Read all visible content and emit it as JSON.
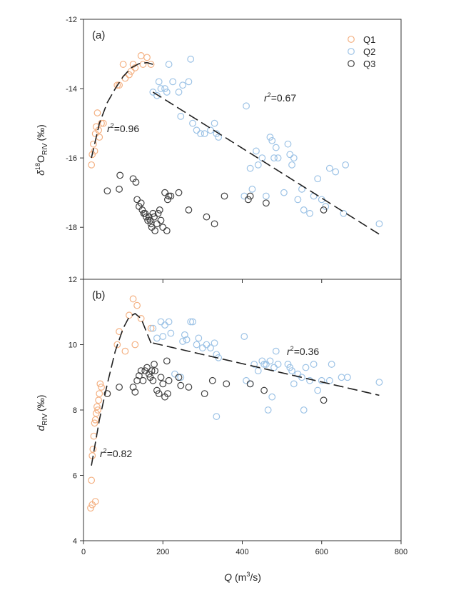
{
  "colors": {
    "Q1": "#f4b183",
    "Q2": "#9dc3e6",
    "Q3": "#404040",
    "fit": "#222222"
  },
  "chart_data": [
    {
      "type": "scatter",
      "panel_label": "(a)",
      "ylabel": "δ18ORIV (‰)",
      "ylabel_parts": {
        "symbol": "δ",
        "sup": "18",
        "main": "O",
        "sub": "RIV",
        "unit": "(‰)"
      },
      "xlim": [
        0,
        800
      ],
      "ylim": [
        -19.5,
        -12
      ],
      "yticks": [
        -18,
        -16,
        -14,
        -12
      ],
      "legend": [
        "Q1",
        "Q2",
        "Q3"
      ],
      "legend_position": "top-right",
      "series": [
        {
          "name": "Q1",
          "points": [
            [
              20,
              -16.2
            ],
            [
              22,
              -15.9
            ],
            [
              25,
              -15.6
            ],
            [
              28,
              -15.8
            ],
            [
              30,
              -15.3
            ],
            [
              32,
              -15.1
            ],
            [
              35,
              -14.7
            ],
            [
              38,
              -15.2
            ],
            [
              40,
              -15.4
            ],
            [
              45,
              -15.0
            ],
            [
              50,
              -15.0
            ],
            [
              85,
              -13.9
            ],
            [
              90,
              -13.9
            ],
            [
              100,
              -13.3
            ],
            [
              105,
              -13.7
            ],
            [
              115,
              -13.6
            ],
            [
              120,
              -13.5
            ],
            [
              125,
              -13.3
            ],
            [
              130,
              -13.4
            ],
            [
              145,
              -13.05
            ],
            [
              150,
              -13.3
            ],
            [
              160,
              -13.1
            ],
            [
              170,
              -13.3
            ]
          ]
        },
        {
          "name": "Q2",
          "points": [
            [
              175,
              -14.1
            ],
            [
              185,
              -14.2
            ],
            [
              190,
              -13.8
            ],
            [
              195,
              -14.0
            ],
            [
              205,
              -14.0
            ],
            [
              210,
              -14.1
            ],
            [
              215,
              -13.3
            ],
            [
              225,
              -13.8
            ],
            [
              240,
              -14.1
            ],
            [
              245,
              -14.8
            ],
            [
              250,
              -13.9
            ],
            [
              265,
              -13.8
            ],
            [
              270,
              -13.15
            ],
            [
              275,
              -15.0
            ],
            [
              285,
              -15.2
            ],
            [
              295,
              -15.3
            ],
            [
              305,
              -15.3
            ],
            [
              320,
              -15.2
            ],
            [
              330,
              -15.0
            ],
            [
              335,
              -15.3
            ],
            [
              340,
              -15.4
            ],
            [
              405,
              -17.1
            ],
            [
              410,
              -14.5
            ],
            [
              420,
              -16.3
            ],
            [
              425,
              -16.9
            ],
            [
              435,
              -15.8
            ],
            [
              440,
              -16.2
            ],
            [
              450,
              -16.0
            ],
            [
              460,
              -17.1
            ],
            [
              470,
              -15.4
            ],
            [
              475,
              -15.5
            ],
            [
              480,
              -16.0
            ],
            [
              485,
              -15.7
            ],
            [
              490,
              -16.0
            ],
            [
              505,
              -17.0
            ],
            [
              515,
              -15.6
            ],
            [
              520,
              -15.9
            ],
            [
              525,
              -16.2
            ],
            [
              530,
              -16.0
            ],
            [
              540,
              -17.2
            ],
            [
              550,
              -16.9
            ],
            [
              555,
              -17.5
            ],
            [
              570,
              -17.6
            ],
            [
              580,
              -17.1
            ],
            [
              590,
              -16.6
            ],
            [
              600,
              -17.2
            ],
            [
              610,
              -17.4
            ],
            [
              620,
              -16.3
            ],
            [
              635,
              -16.4
            ],
            [
              660,
              -16.2
            ],
            [
              655,
              -17.6
            ],
            [
              745,
              -17.9
            ]
          ]
        },
        {
          "name": "Q3",
          "points": [
            [
              60,
              -16.95
            ],
            [
              90,
              -16.9
            ],
            [
              92,
              -16.5
            ],
            [
              125,
              -16.6
            ],
            [
              132,
              -16.7
            ],
            [
              135,
              -17.2
            ],
            [
              140,
              -17.4
            ],
            [
              145,
              -17.3
            ],
            [
              148,
              -17.5
            ],
            [
              152,
              -17.6
            ],
            [
              155,
              -17.6
            ],
            [
              158,
              -17.7
            ],
            [
              162,
              -17.8
            ],
            [
              165,
              -17.7
            ],
            [
              168,
              -17.8
            ],
            [
              170,
              -17.9
            ],
            [
              172,
              -18.0
            ],
            [
              175,
              -17.6
            ],
            [
              178,
              -17.7
            ],
            [
              180,
              -18.1
            ],
            [
              185,
              -17.9
            ],
            [
              188,
              -17.6
            ],
            [
              192,
              -17.5
            ],
            [
              195,
              -17.8
            ],
            [
              200,
              -18.0
            ],
            [
              205,
              -17.0
            ],
            [
              210,
              -18.1
            ],
            [
              212,
              -17.2
            ],
            [
              215,
              -17.1
            ],
            [
              220,
              -17.1
            ],
            [
              240,
              -17.0
            ],
            [
              265,
              -17.5
            ],
            [
              310,
              -17.7
            ],
            [
              330,
              -17.9
            ],
            [
              355,
              -17.1
            ],
            [
              415,
              -17.2
            ],
            [
              420,
              -17.1
            ],
            [
              460,
              -17.3
            ],
            [
              605,
              -17.5
            ]
          ]
        }
      ],
      "fits": [
        {
          "label": "r2=0.96",
          "r2": "0.96",
          "points": [
            [
              20,
              -16.0
            ],
            [
              40,
              -15.0
            ],
            [
              60,
              -14.4
            ],
            [
              80,
              -14.0
            ],
            [
              100,
              -13.65
            ],
            [
              120,
              -13.4
            ],
            [
              140,
              -13.28
            ],
            [
              160,
              -13.25
            ],
            [
              175,
              -13.3
            ]
          ]
        },
        {
          "label": "r2=0.67",
          "r2": "0.67",
          "points": [
            [
              175,
              -14.1
            ],
            [
              745,
              -18.2
            ]
          ]
        }
      ]
    },
    {
      "type": "scatter",
      "panel_label": "(b)",
      "ylabel": "dRIV (‰)",
      "ylabel_parts": {
        "main": "d",
        "sub": "RIV",
        "unit": "(‰)"
      },
      "xlabel": "Q (m3/s)",
      "xlabel_parts": {
        "main": "Q",
        "unit_pre": "(m",
        "unit_sup": "3",
        "unit_post": "/s)"
      },
      "xlim": [
        0,
        800
      ],
      "xticks": [
        0,
        200,
        400,
        600,
        800
      ],
      "ylim": [
        4,
        12
      ],
      "yticks": [
        4,
        6,
        8,
        10,
        12
      ],
      "series": [
        {
          "name": "Q1",
          "points": [
            [
              18,
              5.0
            ],
            [
              22,
              5.1
            ],
            [
              30,
              5.2
            ],
            [
              20,
              5.85
            ],
            [
              22,
              6.6
            ],
            [
              24,
              6.8
            ],
            [
              26,
              7.2
            ],
            [
              28,
              7.6
            ],
            [
              30,
              7.7
            ],
            [
              32,
              7.9
            ],
            [
              34,
              8.1
            ],
            [
              36,
              8.0
            ],
            [
              38,
              8.3
            ],
            [
              40,
              8.5
            ],
            [
              42,
              8.8
            ],
            [
              45,
              8.7
            ],
            [
              60,
              8.5
            ],
            [
              85,
              10.0
            ],
            [
              90,
              10.4
            ],
            [
              105,
              9.8
            ],
            [
              115,
              10.9
            ],
            [
              125,
              11.4
            ],
            [
              130,
              10.0
            ],
            [
              135,
              11.2
            ],
            [
              145,
              10.8
            ],
            [
              170,
              10.5
            ]
          ]
        },
        {
          "name": "Q2",
          "points": [
            [
              175,
              10.5
            ],
            [
              185,
              10.2
            ],
            [
              195,
              10.7
            ],
            [
              200,
              10.25
            ],
            [
              205,
              10.6
            ],
            [
              215,
              10.7
            ],
            [
              220,
              10.35
            ],
            [
              230,
              9.1
            ],
            [
              245,
              9.0
            ],
            [
              250,
              10.1
            ],
            [
              255,
              10.3
            ],
            [
              260,
              10.15
            ],
            [
              270,
              10.7
            ],
            [
              275,
              10.7
            ],
            [
              285,
              10.0
            ],
            [
              290,
              10.2
            ],
            [
              300,
              9.9
            ],
            [
              310,
              10.0
            ],
            [
              320,
              9.9
            ],
            [
              330,
              10.05
            ],
            [
              335,
              9.7
            ],
            [
              340,
              9.6
            ],
            [
              335,
              7.8
            ],
            [
              405,
              10.25
            ],
            [
              410,
              8.9
            ],
            [
              420,
              8.8
            ],
            [
              430,
              9.4
            ],
            [
              440,
              9.2
            ],
            [
              450,
              9.5
            ],
            [
              455,
              9.4
            ],
            [
              460,
              9.4
            ],
            [
              465,
              8.0
            ],
            [
              470,
              9.5
            ],
            [
              475,
              8.4
            ],
            [
              480,
              9.3
            ],
            [
              485,
              9.8
            ],
            [
              490,
              9.4
            ],
            [
              515,
              9.4
            ],
            [
              520,
              9.3
            ],
            [
              525,
              9.2
            ],
            [
              530,
              8.8
            ],
            [
              540,
              9.1
            ],
            [
              550,
              9.0
            ],
            [
              555,
              8.0
            ],
            [
              560,
              9.3
            ],
            [
              570,
              8.9
            ],
            [
              580,
              9.4
            ],
            [
              590,
              8.6
            ],
            [
              600,
              8.9
            ],
            [
              620,
              8.9
            ],
            [
              625,
              9.4
            ],
            [
              650,
              9.0
            ],
            [
              665,
              9.0
            ],
            [
              745,
              8.85
            ]
          ]
        },
        {
          "name": "Q3",
          "points": [
            [
              60,
              8.5
            ],
            [
              90,
              8.7
            ],
            [
              125,
              8.7
            ],
            [
              130,
              8.55
            ],
            [
              135,
              8.9
            ],
            [
              140,
              9.05
            ],
            [
              145,
              9.2
            ],
            [
              150,
              8.9
            ],
            [
              155,
              9.2
            ],
            [
              160,
              9.3
            ],
            [
              165,
              9.1
            ],
            [
              168,
              9.0
            ],
            [
              172,
              9.2
            ],
            [
              175,
              8.9
            ],
            [
              178,
              9.4
            ],
            [
              180,
              9.2
            ],
            [
              185,
              8.6
            ],
            [
              190,
              8.5
            ],
            [
              195,
              9.0
            ],
            [
              200,
              8.8
            ],
            [
              205,
              8.4
            ],
            [
              210,
              9.5
            ],
            [
              212,
              8.5
            ],
            [
              215,
              8.9
            ],
            [
              240,
              9.0
            ],
            [
              245,
              8.75
            ],
            [
              265,
              8.7
            ],
            [
              305,
              8.5
            ],
            [
              325,
              8.9
            ],
            [
              360,
              8.8
            ],
            [
              420,
              8.8
            ],
            [
              455,
              8.6
            ],
            [
              605,
              8.3
            ]
          ]
        }
      ],
      "fits": [
        {
          "label": "r2=0.82",
          "r2": "0.82",
          "points": [
            [
              20,
              6.3
            ],
            [
              40,
              7.7
            ],
            [
              60,
              8.8
            ],
            [
              80,
              9.8
            ],
            [
              100,
              10.5
            ],
            [
              115,
              10.85
            ],
            [
              130,
              10.95
            ],
            [
              145,
              10.8
            ],
            [
              160,
              10.35
            ],
            [
              170,
              10.05
            ]
          ]
        },
        {
          "label": "r2=0.36",
          "r2": "0.36",
          "points": [
            [
              175,
              10.05
            ],
            [
              745,
              8.45
            ]
          ]
        }
      ]
    }
  ]
}
